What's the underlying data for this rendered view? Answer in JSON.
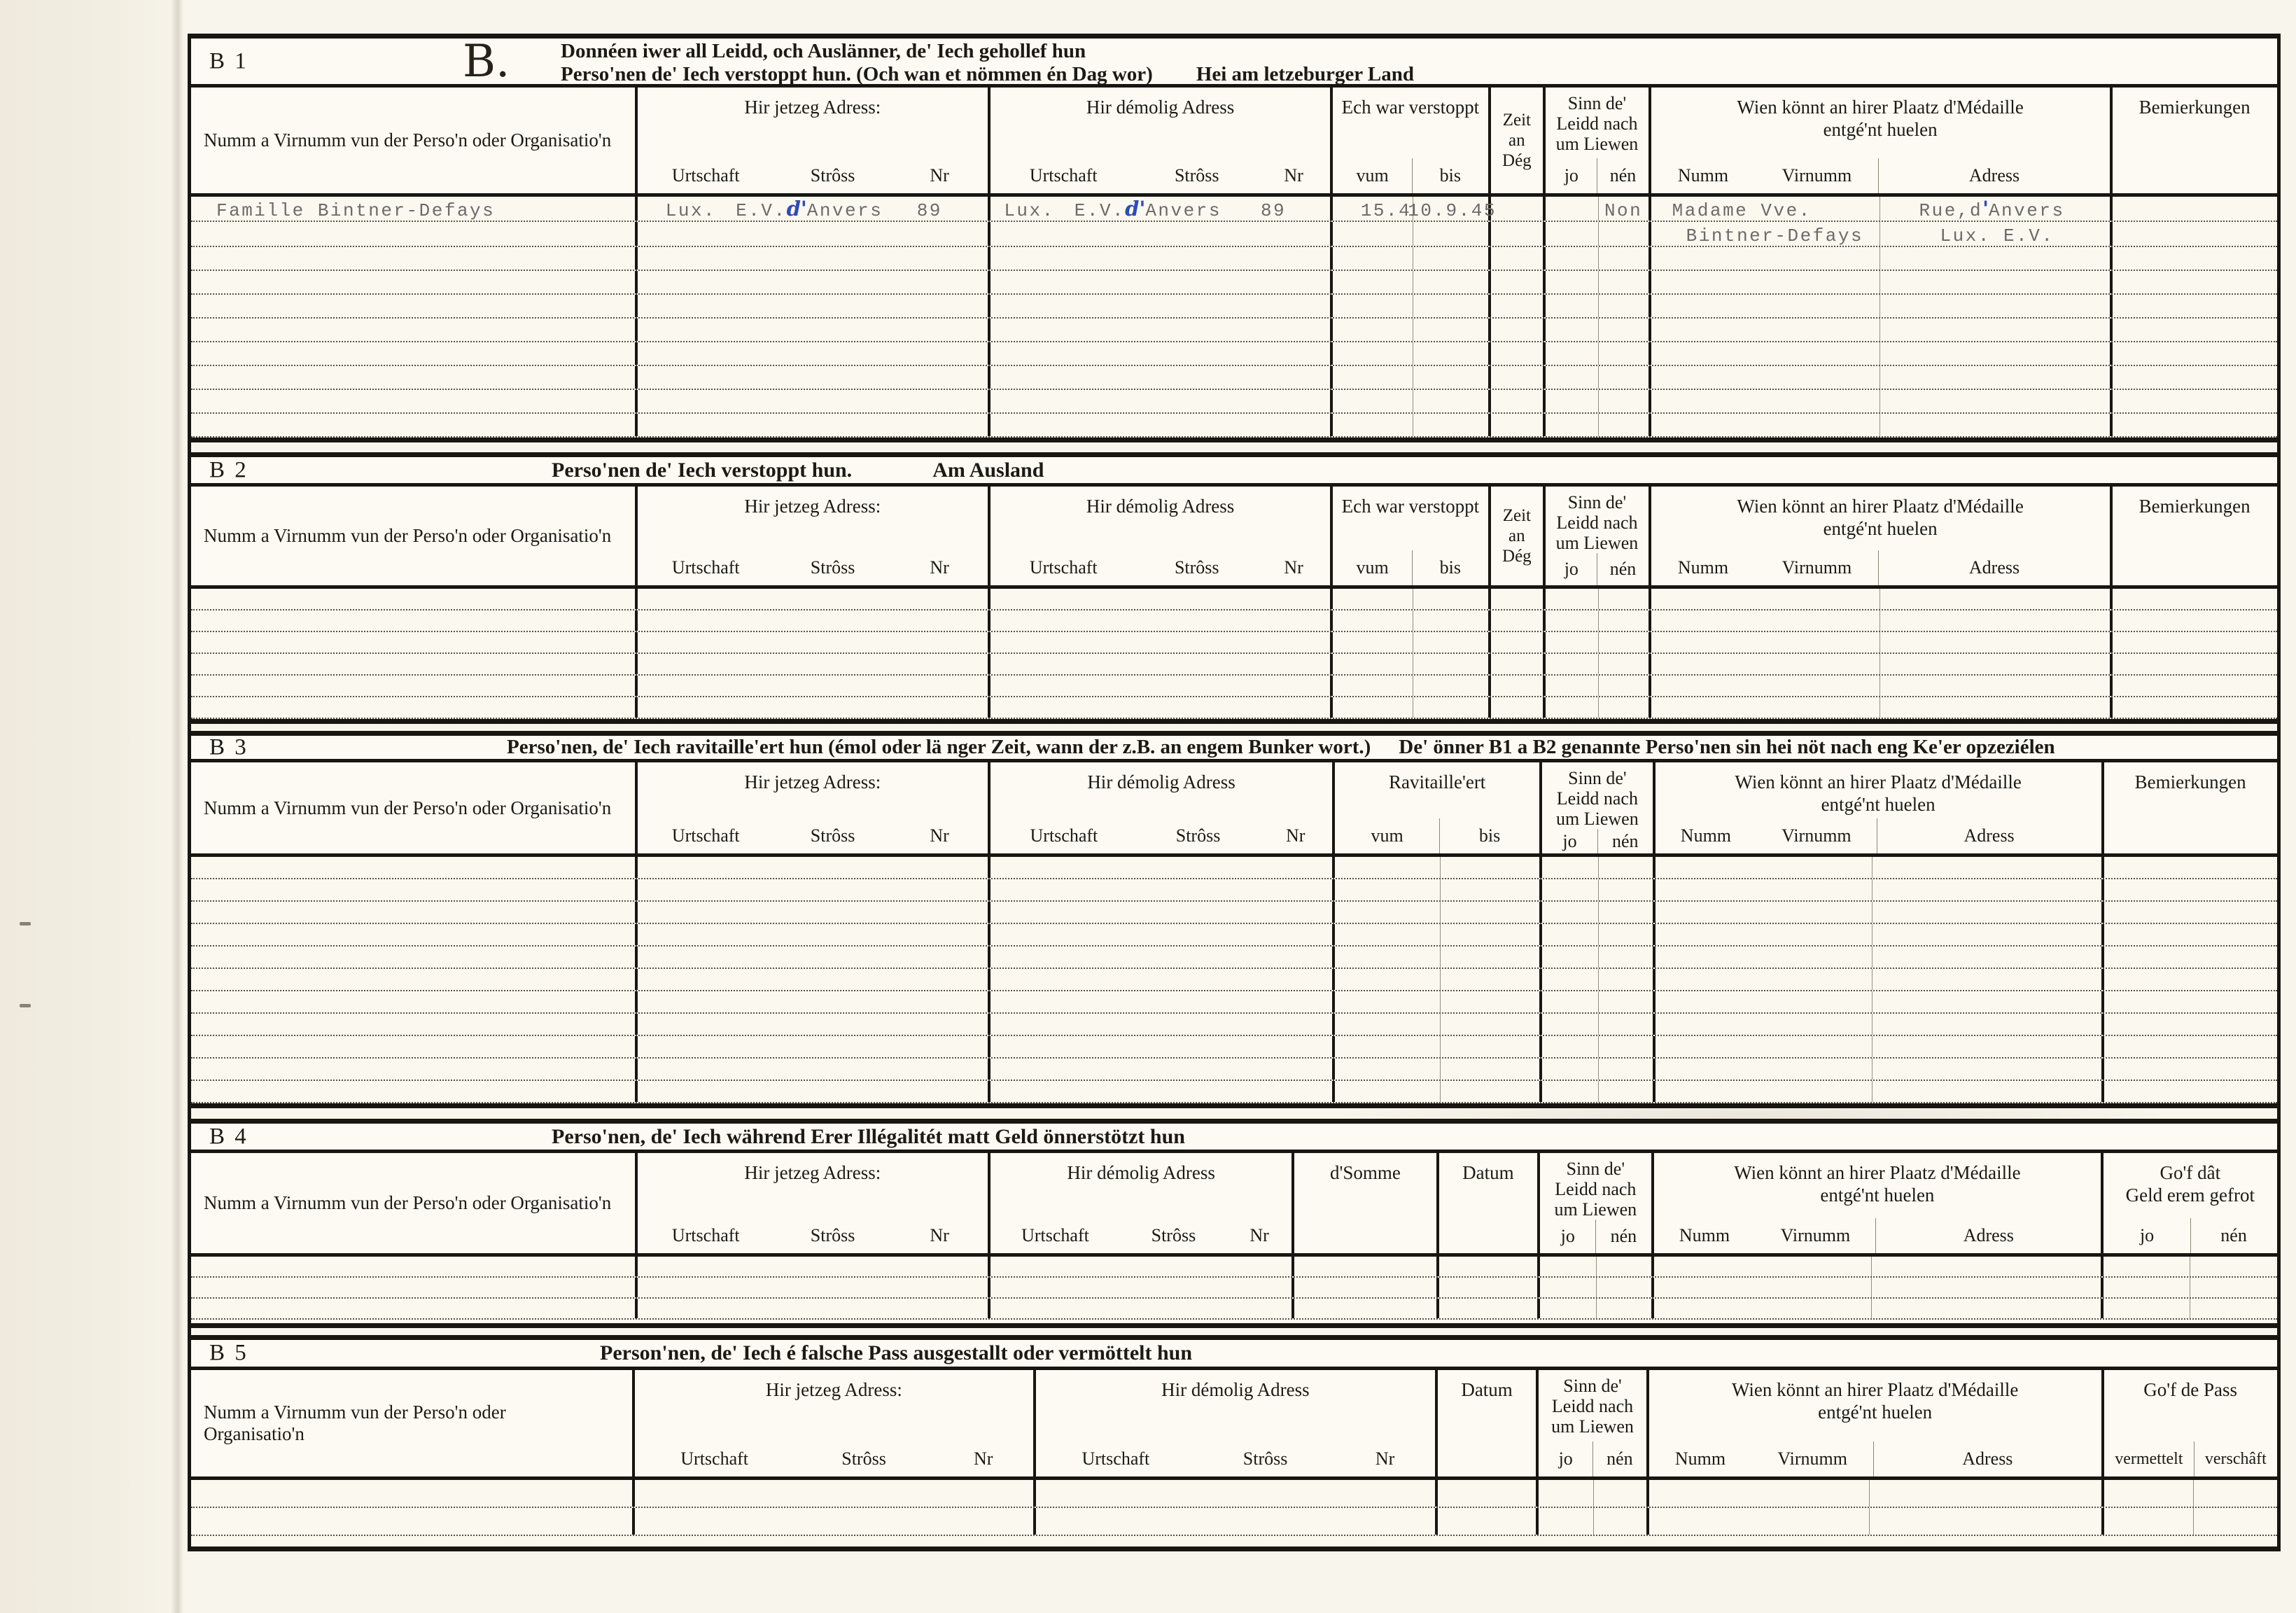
{
  "page": {
    "letter": "B."
  },
  "labels": {
    "name_col": "Numm a Virnumm vun der Perso'n oder Organisatio'n",
    "jetzeg_adress": "Hir jetzeg Adress:",
    "demolig_adress": "Hir démolig Adress",
    "urtschaft": "Urtschaft",
    "stross": "Strôss",
    "nr": "Nr",
    "ech_war_verstoppt": "Ech war verstoppt",
    "vum": "vum",
    "bis": "bis",
    "zeit_line1": "Zeit",
    "zeit_line2": "an",
    "zeit_line3": "Dég",
    "sinn_line1": "Sinn de'",
    "sinn_line2": "Leidd nach",
    "sinn_line3": "um Liewen",
    "jo": "jo",
    "nen": "nén",
    "wien_line1": "Wien könnt an hirer Plaatz d'Médaille",
    "wien_line2": "entgé'nt huelen",
    "numm": "Numm",
    "virnumm": "Virnumm",
    "adress": "Adress",
    "bemierkungen": "Bemierkungen",
    "ravitailleert": "Ravitaille'ert",
    "dsomme": "d'Somme",
    "datum": "Datum",
    "gof_geld_line1": "Go'f dât",
    "gof_geld_line2": "Geld erem gefrot",
    "gof_pass": "Go'f de Pass",
    "vermettelt": "vermettelt",
    "verschaft": "verschâft"
  },
  "sections": {
    "b1": {
      "id": "B 1",
      "title_line1": "Donnéen iwer all Leidd, och Auslänner, de' Iech gehollef hun",
      "title_line2": "Perso'nen de' Iech verstoppt hun. (Och wan et nömmen én Dag wor)",
      "title_suffix": "Hei am letzeburger Land"
    },
    "b2": {
      "id": "B 2",
      "title": "Perso'nen de' Iech verstoppt hun.",
      "title_suffix": "Am Ausland"
    },
    "b3": {
      "id": "B 3",
      "title": "Perso'nen, de' Iech ravitaille'ert hun (émol oder lä nger Zeit, wann der z.B. an engem Bunker wort.)",
      "title_suffix": "De' önner B1 a B2 genannte Perso'nen sin hei nöt nach eng Ke'er opzeziélen"
    },
    "b4": {
      "id": "B 4",
      "title": "Perso'nen, de' Iech während Erer Illégalitét matt Geld önnerstötzt hun"
    },
    "b5": {
      "id": "B 5",
      "title": "Person'nen, de' Iech é falsche Pass ausgestallt oder vermöttelt hun"
    }
  },
  "entry": {
    "name": "Famille Bintner-Defays",
    "jetzeg": {
      "urtschaft": "Lux.",
      "stross_pre": "E.V.",
      "stross_ink": "d'",
      "stross_post": "Anvers",
      "nr": "89"
    },
    "demolig": {
      "urtschaft": "Lux.",
      "stross_pre": "E.V.",
      "stross_ink": "d'",
      "stross_post": "Anvers",
      "nr": "89"
    },
    "verstoppt": {
      "vum": "15.4",
      "bis": "10.9.45"
    },
    "liewen_nen": "Non",
    "medaille": {
      "numm_line1": "Madame Vve.",
      "numm_line2": "Bintner-Defays",
      "adress_line1_pre": "Rue,d",
      "adress_line1_ink": "'",
      "adress_line1_post": "Anvers",
      "adress_line2": "Lux. E.V."
    }
  },
  "ink_color": "#2d4db4"
}
